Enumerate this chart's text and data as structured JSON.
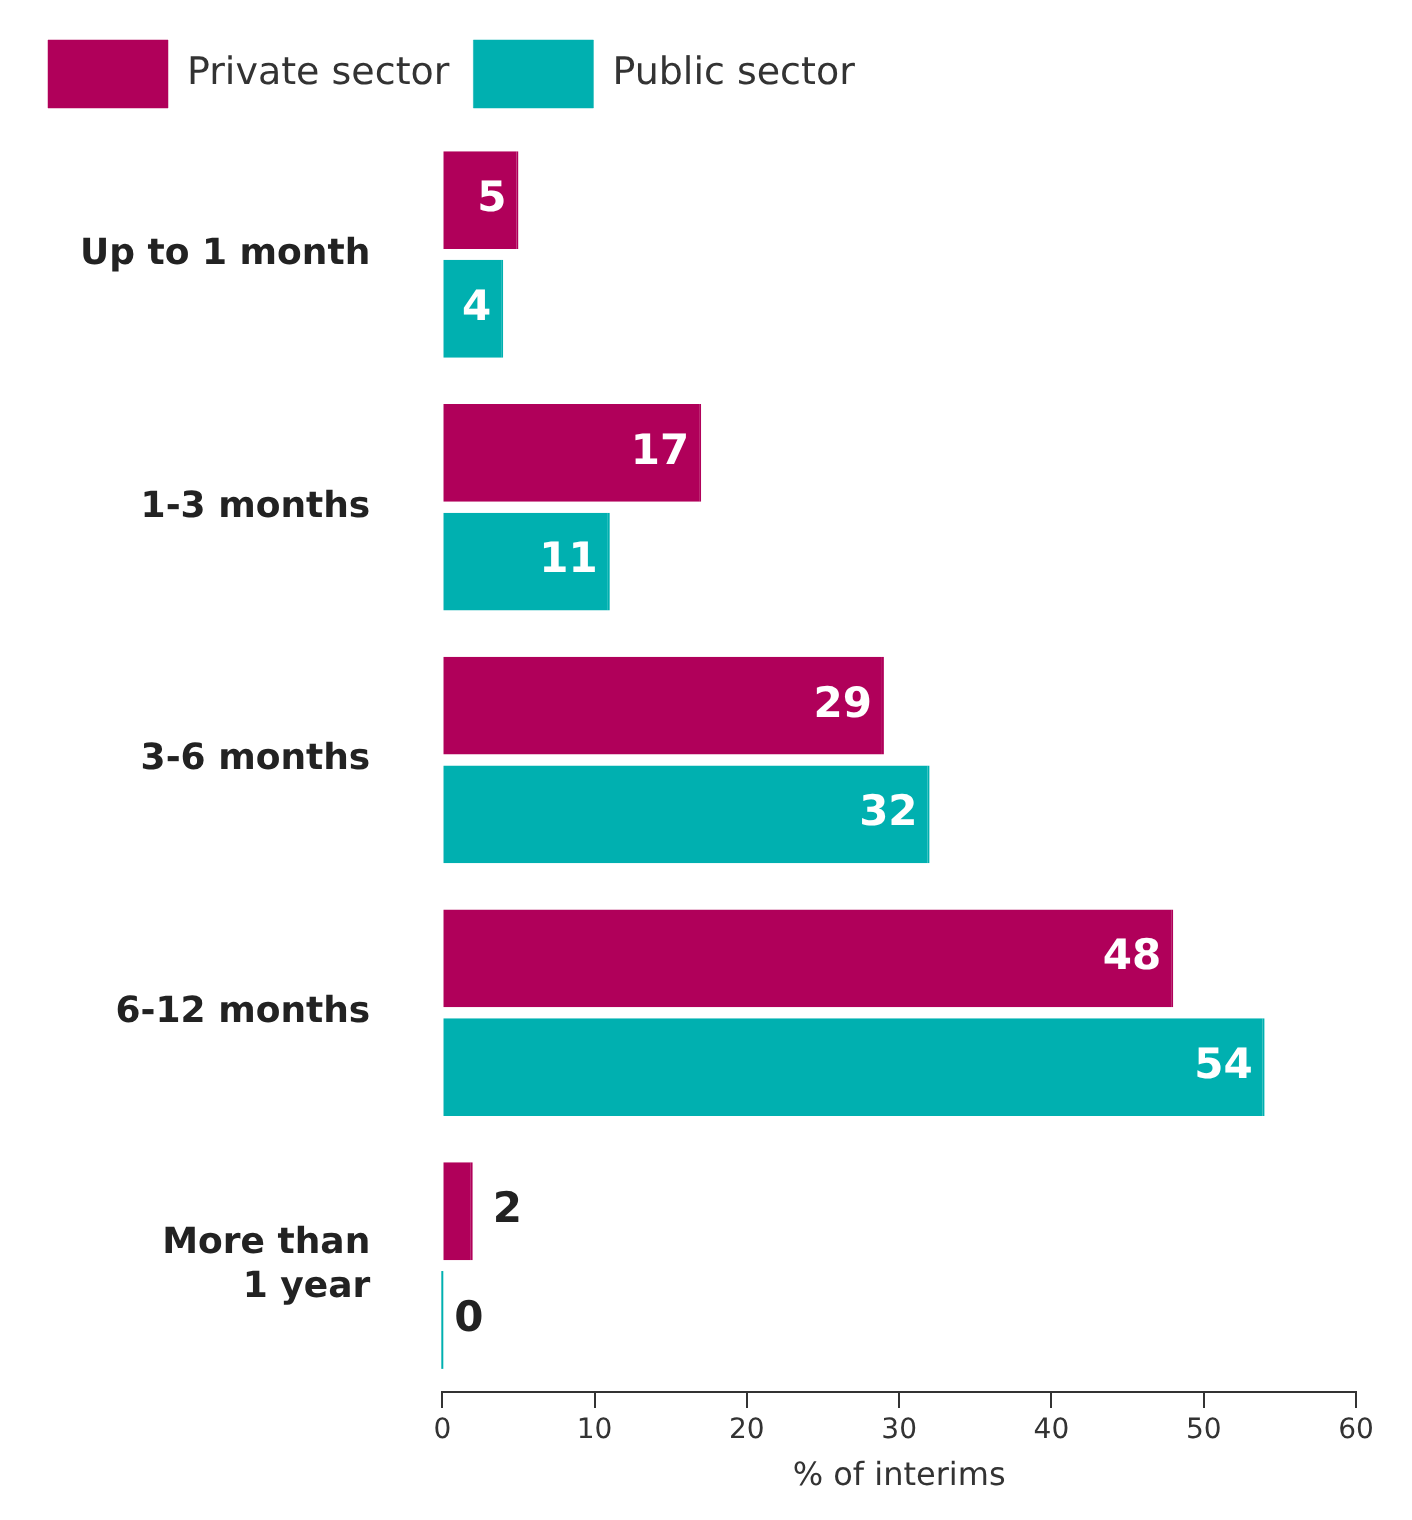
{
  "chart_data": {
    "type": "bar",
    "orientation": "horizontal",
    "categories": [
      "Up to 1 month",
      "1-3 months",
      "3-6 months",
      "6-12 months",
      "More than 1 year"
    ],
    "series": [
      {
        "name": "Private sector",
        "color": "#b0005a",
        "values": [
          5,
          17,
          29,
          48,
          2
        ]
      },
      {
        "name": "Public sector",
        "color": "#00b0b0",
        "values": [
          4,
          11,
          32,
          54,
          0
        ]
      }
    ],
    "xlabel": "% of interims",
    "xlim": [
      0,
      60
    ],
    "xticks": [
      0,
      10,
      20,
      30,
      40,
      50,
      60
    ],
    "grid": false,
    "legend": "top left",
    "data_labels": true
  }
}
